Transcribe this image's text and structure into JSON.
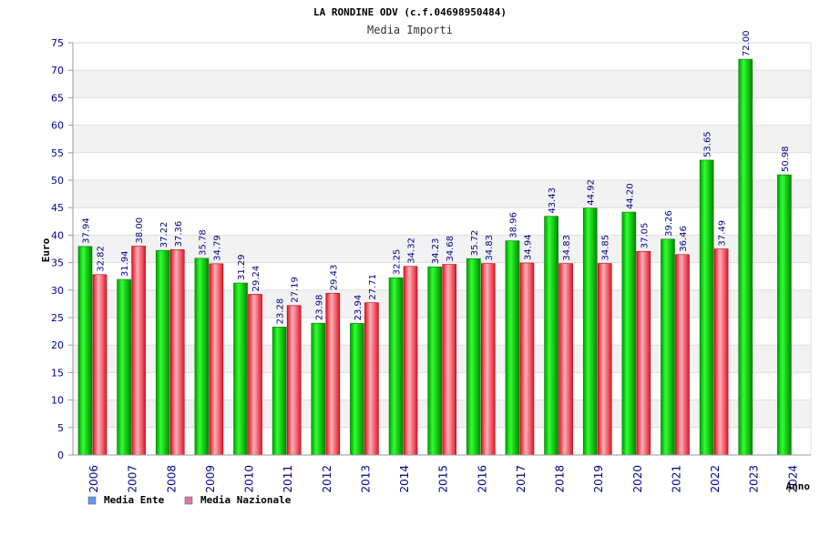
{
  "chart_data": {
    "type": "bar",
    "title": "LA RONDINE ODV (c.f.04698950484)",
    "subtitle": "Media Importi",
    "xlabel": "Anno",
    "ylabel": "Euro",
    "ylim": [
      0,
      75
    ],
    "ytick_step": 5,
    "grid": true,
    "legend_position": "bottom-left",
    "categories": [
      "2006",
      "2007",
      "2008",
      "2009",
      "2010",
      "2011",
      "2012",
      "2013",
      "2014",
      "2015",
      "2016",
      "2017",
      "2018",
      "2019",
      "2020",
      "2021",
      "2022",
      "2023",
      "2024"
    ],
    "series": [
      {
        "name": "Media Ente",
        "color": "#00b000",
        "legend_color": "#6699ee",
        "values": [
          37.94,
          31.94,
          37.22,
          35.78,
          31.29,
          23.28,
          23.98,
          23.94,
          32.25,
          34.23,
          35.72,
          38.96,
          43.43,
          44.92,
          44.2,
          39.26,
          53.65,
          72.0,
          50.98
        ]
      },
      {
        "name": "Media Nazionale",
        "color": "#e02030",
        "legend_color": "#dd77aa",
        "values": [
          32.82,
          38.0,
          37.36,
          34.79,
          29.24,
          27.19,
          29.43,
          27.71,
          34.32,
          34.68,
          34.83,
          34.94,
          34.83,
          34.85,
          37.05,
          36.46,
          37.49,
          null,
          null
        ]
      }
    ]
  }
}
